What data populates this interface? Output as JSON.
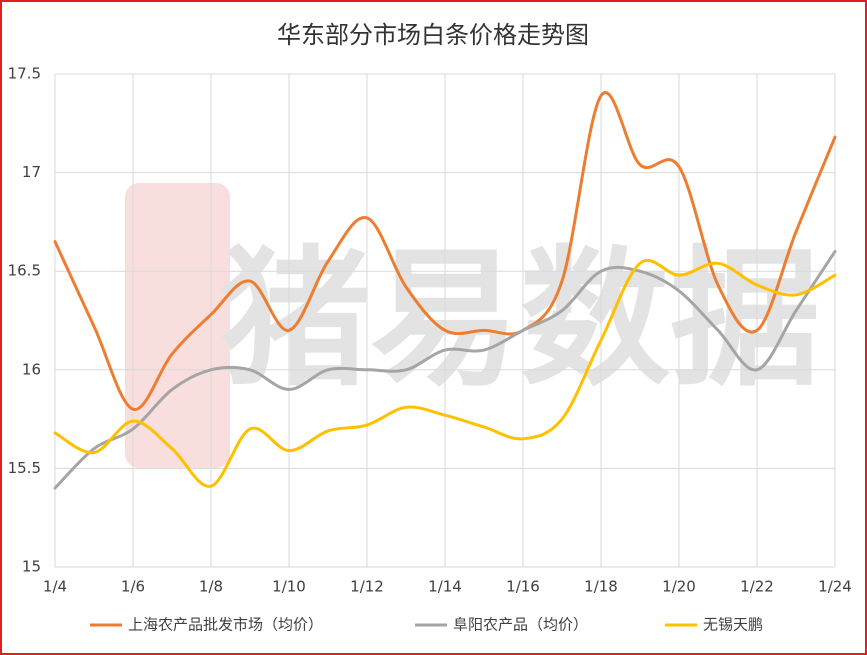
{
  "chart_data": {
    "type": "line",
    "title": "华东部分市场白条价格走势图",
    "watermark": "猪易数据",
    "categories": [
      "1/4",
      null,
      "1/6",
      null,
      "1/8",
      null,
      "1/10",
      null,
      "1/12",
      null,
      "1/14",
      null,
      "1/16",
      null,
      "1/18",
      null,
      "1/20",
      null,
      "1/22",
      null,
      "1/24"
    ],
    "series": [
      {
        "name": "上海农产品批发市场（均价）",
        "color": "#ed7d31",
        "values": [
          16.65,
          16.22,
          15.8,
          16.08,
          16.28,
          16.45,
          16.2,
          16.55,
          16.77,
          16.42,
          16.2,
          16.2,
          16.2,
          16.45,
          17.39,
          17.04,
          17.03,
          16.43,
          16.2,
          16.7,
          17.18
        ]
      },
      {
        "name": "阜阳农产品（均价）",
        "color": "#a5a5a5",
        "values": [
          15.4,
          15.6,
          15.7,
          15.9,
          16.0,
          16.0,
          15.9,
          16.0,
          16.0,
          16.0,
          16.1,
          16.1,
          16.2,
          16.3,
          16.5,
          16.5,
          16.4,
          16.2,
          16.0,
          16.3,
          16.6
        ]
      },
      {
        "name": "无锡天鹏",
        "color": "#ffc000",
        "values": [
          15.68,
          15.58,
          15.74,
          15.6,
          15.41,
          15.7,
          15.59,
          15.69,
          15.72,
          15.81,
          15.77,
          15.71,
          15.65,
          15.75,
          16.15,
          16.54,
          16.48,
          16.54,
          16.43,
          16.38,
          16.48
        ]
      }
    ],
    "ylim": [
      15,
      17.5
    ],
    "yticks": [
      15,
      15.5,
      16,
      16.5,
      17,
      17.5
    ],
    "grid": true
  }
}
